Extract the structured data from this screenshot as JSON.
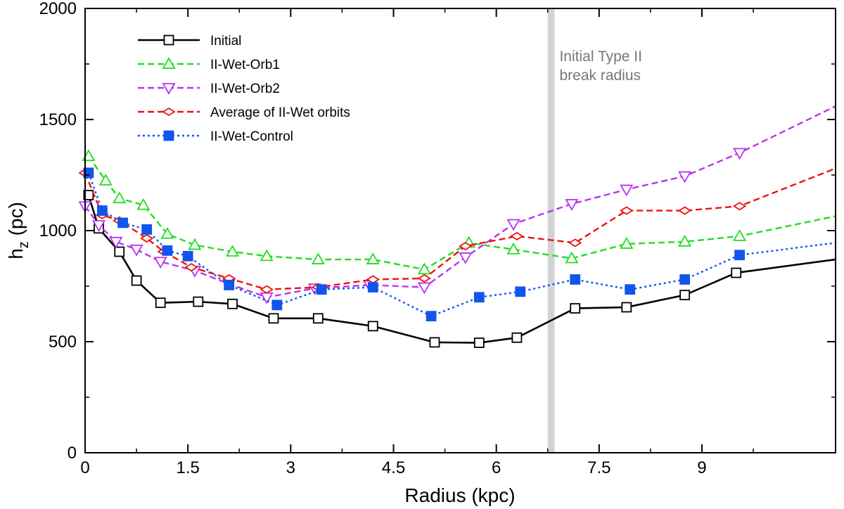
{
  "chart_data": {
    "type": "line",
    "title": "",
    "xlabel": "Radius (kpc)",
    "ylabel_main": "h",
    "ylabel_sub": "z",
    "ylabel_unit": " (pc)",
    "xlim": [
      0,
      10.95
    ],
    "ylim": [
      0,
      2000
    ],
    "xticks": [
      0,
      1.5,
      3,
      4.5,
      6,
      7.5,
      9
    ],
    "xtick_labels": [
      "0",
      "1.5",
      "3",
      "4.5",
      "6",
      "7.5",
      "9"
    ],
    "yticks": [
      0,
      500,
      1000,
      1500,
      2000
    ],
    "ytick_labels": [
      "0",
      "500",
      "1000",
      "1500",
      "2000"
    ],
    "legend_position": "top-left",
    "annotation": {
      "lines": [
        "Initial Type II",
        "break radius"
      ],
      "x_range": [
        6.75,
        6.85
      ],
      "color": "#777777",
      "band_color": "#d3d3d3"
    },
    "series": [
      {
        "name": "Initial",
        "color": "#000000",
        "dash": "solid",
        "marker": "square-open",
        "x": [
          0.05,
          0.2,
          0.5,
          0.75,
          1.1,
          1.65,
          2.15,
          2.75,
          3.4,
          4.2,
          5.1,
          5.75,
          6.3,
          7.15,
          7.9,
          8.75,
          9.5,
          10.95
        ],
        "y": [
          1160,
          1010,
          905,
          775,
          675,
          680,
          670,
          605,
          605,
          570,
          497,
          495,
          518,
          650,
          655,
          710,
          810,
          870
        ]
      },
      {
        "name": "II-Wet-Orb1",
        "color": "#22dd22",
        "dash": "dashed",
        "marker": "triangle-up-open",
        "x": [
          0.05,
          0.3,
          0.5,
          0.85,
          1.2,
          1.6,
          2.15,
          2.65,
          3.4,
          4.2,
          4.95,
          5.6,
          6.25,
          7.1,
          7.9,
          8.75,
          9.55,
          10.95
        ],
        "y": [
          1335,
          1225,
          1145,
          1115,
          985,
          935,
          905,
          885,
          870,
          870,
          825,
          945,
          915,
          875,
          940,
          950,
          975,
          1065
        ]
      },
      {
        "name": "II-Wet-Orb2",
        "color": "#bb33ee",
        "dash": "dashed",
        "marker": "triangle-down-open",
        "x": [
          0.0,
          0.2,
          0.45,
          0.75,
          1.1,
          1.6,
          2.1,
          2.65,
          3.35,
          4.15,
          4.95,
          5.55,
          6.25,
          7.1,
          7.9,
          8.75,
          9.55,
          10.95
        ],
        "y": [
          1110,
          1025,
          950,
          915,
          860,
          820,
          760,
          700,
          740,
          755,
          745,
          880,
          1030,
          1120,
          1185,
          1245,
          1350,
          1560
        ]
      },
      {
        "name": "Average of II-Wet orbits",
        "color": "#ee1111",
        "dash": "dashed",
        "marker": "diamond-open",
        "x": [
          0.0,
          0.25,
          0.5,
          0.9,
          1.15,
          1.55,
          2.1,
          2.65,
          3.4,
          4.2,
          4.95,
          5.55,
          6.3,
          7.15,
          7.9,
          8.75,
          9.55,
          10.95
        ],
        "y": [
          1260,
          1070,
          1045,
          965,
          905,
          835,
          785,
          735,
          745,
          780,
          785,
          930,
          975,
          945,
          1090,
          1090,
          1110,
          1280
        ]
      },
      {
        "name": "II-Wet-Control",
        "color": "#1155ee",
        "dash": "dotted",
        "marker": "square-filled",
        "x": [
          0.05,
          0.25,
          0.55,
          0.9,
          1.2,
          1.5,
          2.1,
          2.8,
          3.45,
          4.2,
          5.05,
          5.75,
          6.35,
          7.15,
          7.95,
          8.75,
          9.55,
          10.95
        ],
        "y": [
          1260,
          1090,
          1035,
          1005,
          910,
          885,
          755,
          665,
          735,
          745,
          615,
          700,
          725,
          780,
          735,
          780,
          890,
          945
        ]
      }
    ]
  }
}
